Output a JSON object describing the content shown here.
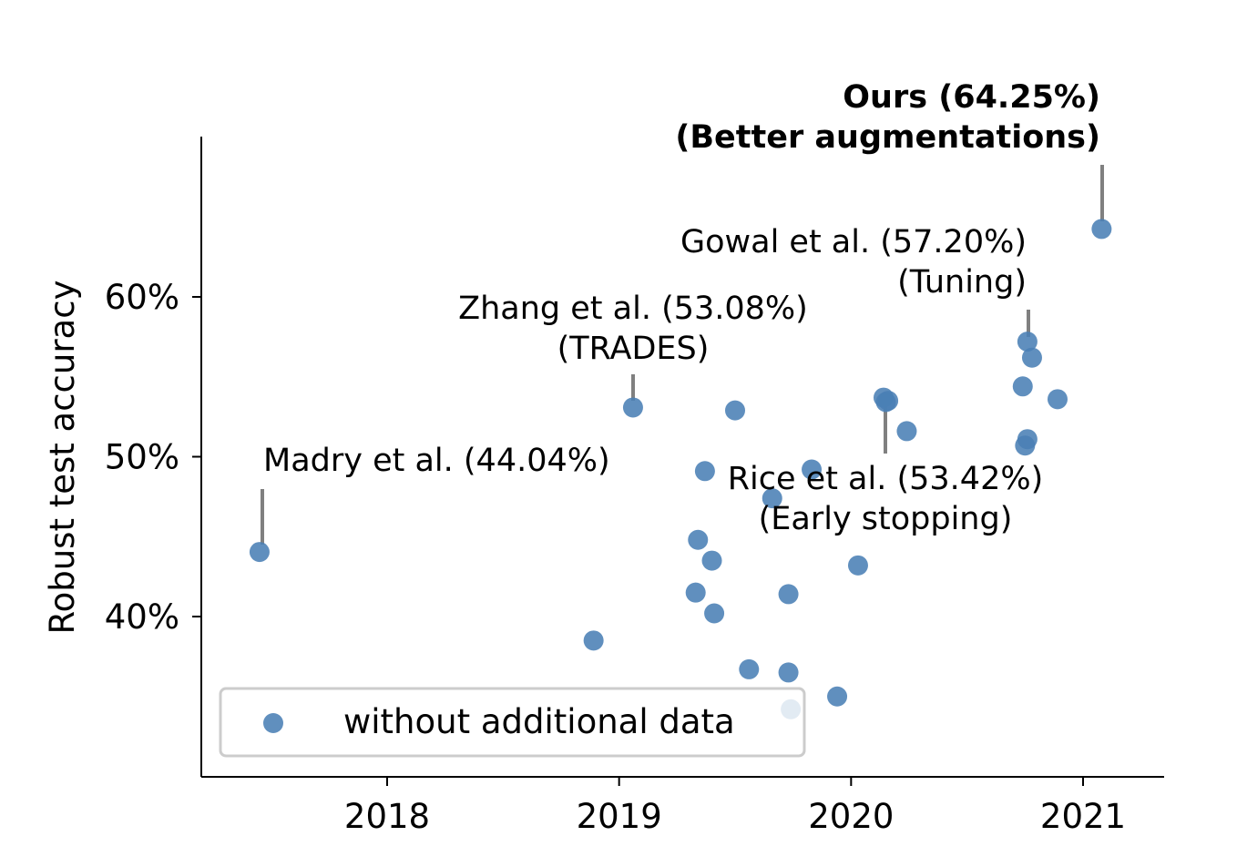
{
  "chart_data": {
    "type": "scatter",
    "title": "",
    "xlabel": "",
    "ylabel": "Robust test accuracy",
    "xlim": [
      2017.2,
      2021.35
    ],
    "ylim": [
      30.2,
      69.9
    ],
    "xticks": [
      2018,
      2019,
      2020,
      2021
    ],
    "xtick_labels": [
      "2018",
      "2019",
      "2020",
      "2021"
    ],
    "yticks": [
      40,
      50,
      60
    ],
    "ytick_labels": [
      "40%",
      "50%",
      "60%"
    ],
    "grid": false,
    "legend": {
      "position": "bottom-left",
      "entries": [
        "without additional data"
      ]
    },
    "series": [
      {
        "name": "without additional data",
        "color": "#4a7fb5",
        "points": [
          [
            2017.45,
            44.04
          ],
          [
            2018.89,
            38.5
          ],
          [
            2019.06,
            53.08
          ],
          [
            2019.33,
            41.5
          ],
          [
            2019.34,
            44.8
          ],
          [
            2019.37,
            49.1
          ],
          [
            2019.4,
            43.5
          ],
          [
            2019.41,
            40.2
          ],
          [
            2019.5,
            52.9
          ],
          [
            2019.56,
            36.7
          ],
          [
            2019.66,
            47.4
          ],
          [
            2019.73,
            36.5
          ],
          [
            2019.73,
            41.4
          ],
          [
            2019.74,
            34.2
          ],
          [
            2019.83,
            49.2
          ],
          [
            2019.94,
            35.0
          ],
          [
            2020.03,
            43.2
          ],
          [
            2020.14,
            53.7
          ],
          [
            2020.15,
            53.42
          ],
          [
            2020.16,
            53.5
          ],
          [
            2020.24,
            51.6
          ],
          [
            2020.74,
            54.4
          ],
          [
            2020.75,
            50.7
          ],
          [
            2020.76,
            57.2
          ],
          [
            2020.76,
            51.1
          ],
          [
            2020.78,
            56.2
          ],
          [
            2020.89,
            53.6
          ],
          [
            2021.08,
            64.25
          ]
        ]
      }
    ],
    "annotations": [
      {
        "lines": [
          "Madry et al. (44.04%)"
        ],
        "x": 2017.45,
        "y": 44.04,
        "bold": false
      },
      {
        "lines": [
          "Zhang et al. (53.08%)",
          "(TRADES)"
        ],
        "x": 2019.06,
        "y": 53.08,
        "bold": false
      },
      {
        "lines": [
          "Rice et al. (53.42%)",
          "(Early stopping)"
        ],
        "x": 2020.15,
        "y": 53.42,
        "bold": false
      },
      {
        "lines": [
          "Gowal et al. (57.20%)",
          "(Tuning)"
        ],
        "x": 2020.76,
        "y": 57.2,
        "bold": false
      },
      {
        "lines": [
          "Ours (64.25%)",
          "(Better augmentations)"
        ],
        "x": 2021.08,
        "y": 64.25,
        "bold": true
      }
    ]
  }
}
